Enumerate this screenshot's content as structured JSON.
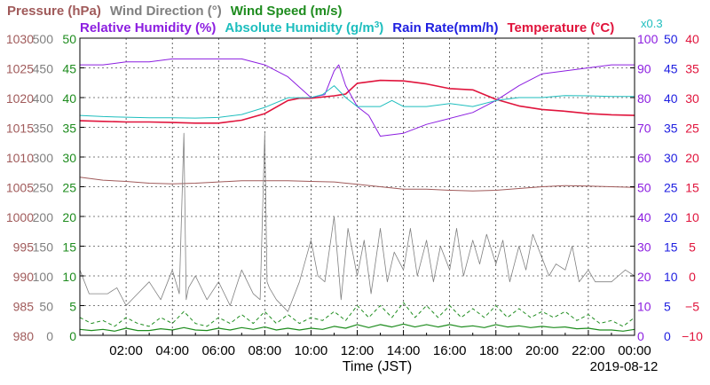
{
  "chart_data": {
    "type": "line",
    "date": "2019-08-12",
    "xlabel": "Time (JST)",
    "x_ticks": [
      "02:00",
      "04:00",
      "06:00",
      "08:00",
      "10:00",
      "12:00",
      "14:00",
      "16:00",
      "18:00",
      "20:00",
      "22:00",
      "00:00"
    ],
    "x_range_hours": [
      0,
      24
    ],
    "grid": true,
    "legend_placement": "top",
    "legend": [
      {
        "key": "pressure",
        "label": "Pressure (hPa)",
        "color": "#a05a5a",
        "row": 1
      },
      {
        "key": "wind_direction",
        "label": "Wind Direction (°)",
        "color": "#808080",
        "row": 1
      },
      {
        "key": "wind_speed",
        "label": "Wind Speed (m/s)",
        "color": "#1e8c1e",
        "row": 1
      },
      {
        "key": "relative_humidity",
        "label": "Relative Humidity (%)",
        "color": "#8c1ee0",
        "row": 2
      },
      {
        "key": "absolute_humidity",
        "label": "Absolute Humidity (g/m",
        "sup": "3",
        "tail": ")",
        "color": "#1ebebe",
        "row": 2
      },
      {
        "key": "rain_rate",
        "label": "Rain Rate(mm/h)",
        "color": "#1e1ee0",
        "row": 2
      },
      {
        "key": "temperature",
        "label": "Temperature  (°C)",
        "color": "#e0143c",
        "row": 2
      }
    ],
    "abs_humidity_factor_label": "x0.3",
    "axes": [
      {
        "key": "pressure",
        "side": "left",
        "color": "#a05a5a",
        "min": 980,
        "max": 1030,
        "ticks": [
          "980",
          "985",
          "990",
          "995",
          "1000",
          "1005",
          "1010",
          "1015",
          "1020",
          "1025",
          "1030"
        ]
      },
      {
        "key": "wind_direction",
        "side": "left",
        "color": "#808080",
        "min": 0,
        "max": 500,
        "ticks": [
          "0",
          "50",
          "100",
          "150",
          "200",
          "250",
          "300",
          "350",
          "400",
          "450",
          "500"
        ]
      },
      {
        "key": "wind_speed",
        "side": "left",
        "color": "#1e8c1e",
        "min": 0,
        "max": 50,
        "ticks": [
          "0",
          "5",
          "10",
          "15",
          "20",
          "25",
          "30",
          "35",
          "40",
          "45",
          "50"
        ]
      },
      {
        "key": "relative_humidity",
        "side": "right",
        "color": "#8c1ee0",
        "min": 0,
        "max": 100,
        "ticks": [
          "0",
          "10",
          "20",
          "30",
          "40",
          "50",
          "60",
          "70",
          "80",
          "90",
          "100"
        ]
      },
      {
        "key": "rain_rate",
        "side": "right",
        "color": "#1e1ee0",
        "min": 0,
        "max": 50,
        "ticks": [
          "0",
          "5",
          "10",
          "15",
          "20",
          "25",
          "30",
          "35",
          "40",
          "45",
          "50"
        ]
      },
      {
        "key": "temperature",
        "side": "right",
        "color": "#e0143c",
        "min": -10,
        "max": 40,
        "ticks": [
          "−10",
          "−5",
          "0",
          "5",
          "10",
          "15",
          "20",
          "25",
          "30",
          "35",
          "40"
        ]
      }
    ],
    "series": [
      {
        "name": "Pressure (hPa)",
        "key": "pressure",
        "color": "#a05a5a",
        "axis": "pressure",
        "width": 1,
        "x": [
          0,
          1,
          2,
          3,
          4,
          5,
          6,
          7,
          8,
          9,
          10,
          11,
          12,
          13,
          14,
          15,
          16,
          17,
          18,
          19,
          20,
          21,
          22,
          23,
          24
        ],
        "y": [
          1006.6,
          1006.1,
          1005.9,
          1005.6,
          1005.5,
          1005.6,
          1005.8,
          1006.0,
          1006.0,
          1006.0,
          1005.9,
          1005.8,
          1005.4,
          1005.0,
          1004.6,
          1004.6,
          1004.4,
          1004.3,
          1004.4,
          1004.7,
          1005.0,
          1005.2,
          1005.1,
          1005.0,
          1004.9
        ]
      },
      {
        "name": "Temperature  (°C)",
        "key": "temperature",
        "color": "#e0143c",
        "axis": "temperature",
        "width": 1.6,
        "x": [
          0,
          1,
          2,
          3,
          4,
          5,
          6,
          7,
          8,
          9,
          9.5,
          10,
          11,
          11.5,
          12,
          13,
          14,
          15,
          16,
          17,
          18,
          19,
          20,
          21,
          22,
          23,
          24
        ],
        "y": [
          26.1,
          26.0,
          25.9,
          25.9,
          25.8,
          25.7,
          25.7,
          26.2,
          27.3,
          29.5,
          29.9,
          29.9,
          30.3,
          30.6,
          32.4,
          32.9,
          32.8,
          32.3,
          31.5,
          31.3,
          29.7,
          28.6,
          28.0,
          27.7,
          27.3,
          27.1,
          27.0
        ]
      },
      {
        "name": "Relative Humidity (%)",
        "key": "relative_humidity",
        "color": "#8c1ee0",
        "axis": "relative_humidity",
        "width": 1,
        "x": [
          0,
          1,
          2,
          3,
          4,
          5,
          6,
          7,
          8,
          9,
          10,
          10.6,
          11,
          11.2,
          11.5,
          12,
          12.5,
          13,
          14,
          15,
          16,
          17,
          18,
          19,
          20,
          21,
          22,
          23,
          24
        ],
        "y": [
          91,
          91,
          92,
          92,
          93,
          93,
          93,
          93,
          91,
          87,
          80,
          81,
          89,
          91,
          84,
          77,
          74,
          67,
          68,
          71,
          73,
          75,
          79,
          84,
          88,
          89,
          90,
          91,
          91
        ]
      },
      {
        "name": "Absolute Humidity (g/m3)",
        "key": "absolute_humidity",
        "color": "#1ebebe",
        "axis": "relative_humidity",
        "width": 1,
        "x": [
          0,
          1,
          2,
          3,
          4,
          5,
          6,
          7,
          8,
          9,
          10,
          10.5,
          11,
          11.5,
          12,
          13,
          13.5,
          14,
          15,
          16,
          17,
          18,
          19,
          20,
          21,
          22,
          23,
          24
        ],
        "y": [
          74,
          73.6,
          73.4,
          73.2,
          73.2,
          73.1,
          73.3,
          74.3,
          76.7,
          79.9,
          80,
          81,
          84,
          80,
          77,
          77,
          79,
          77,
          77,
          78,
          77,
          79,
          80,
          80,
          80.7,
          80.6,
          80.4,
          80.4
        ]
      },
      {
        "name": "Wind Direction (°)",
        "key": "wind_direction",
        "color": "#808080",
        "axis": "wind_direction",
        "width": 0.8,
        "x": [
          0,
          0.4,
          0.8,
          1.2,
          1.6,
          2,
          2.5,
          3,
          3.5,
          4,
          4.3,
          4.5,
          4.6,
          4.7,
          5,
          5.5,
          6,
          6.5,
          7,
          7.5,
          7.8,
          8,
          8.1,
          8.2,
          8.5,
          9,
          9.5,
          10,
          10.3,
          10.6,
          11,
          11.3,
          11.6,
          12,
          12.3,
          12.6,
          13,
          13.3,
          13.6,
          14,
          14.3,
          14.6,
          15,
          15.3,
          15.6,
          16,
          16.3,
          16.6,
          17,
          17.3,
          17.6,
          18,
          18.3,
          18.6,
          19,
          19.3,
          19.6,
          20,
          20.3,
          20.6,
          21,
          21.3,
          21.6,
          22,
          22.3,
          22.6,
          23,
          23.3,
          23.6,
          24
        ],
        "y": [
          110,
          70,
          70,
          70,
          80,
          50,
          70,
          90,
          60,
          110,
          70,
          340,
          60,
          80,
          100,
          60,
          90,
          50,
          110,
          70,
          60,
          340,
          90,
          80,
          60,
          40,
          90,
          160,
          100,
          90,
          200,
          60,
          180,
          100,
          160,
          70,
          180,
          90,
          140,
          110,
          180,
          100,
          160,
          90,
          150,
          110,
          180,
          100,
          160,
          120,
          170,
          120,
          160,
          90,
          150,
          110,
          170,
          130,
          100,
          120,
          110,
          150,
          90,
          110,
          90,
          90,
          90,
          100,
          110,
          100
        ]
      },
      {
        "name": "Wind Speed (m/s) gust",
        "key": "wind_speed_gust",
        "color": "#1e8c1e",
        "axis": "wind_speed",
        "dashed": true,
        "width": 1,
        "x": [
          0,
          0.5,
          1,
          1.5,
          2,
          2.5,
          3,
          3.5,
          4,
          4.5,
          5,
          5.5,
          6,
          6.5,
          7,
          7.5,
          8,
          8.5,
          9,
          9.5,
          10,
          10.5,
          11,
          11.5,
          12,
          12.5,
          13,
          13.5,
          14,
          14.5,
          15,
          15.5,
          16,
          16.5,
          17,
          17.5,
          18,
          18.5,
          19,
          19.5,
          20,
          20.5,
          21,
          21.5,
          22,
          22.5,
          23,
          23.5,
          24
        ],
        "y": [
          3,
          2,
          2.5,
          1.5,
          3,
          2,
          1.5,
          3,
          2,
          4,
          2,
          1.5,
          3,
          2,
          3.5,
          2,
          4,
          2,
          3.5,
          2,
          3,
          2.5,
          4,
          2.5,
          5,
          3,
          5,
          3,
          5.5,
          3,
          5,
          3,
          5,
          3,
          4.5,
          3,
          5,
          3,
          4.5,
          3,
          4,
          3,
          4,
          2.5,
          3.5,
          2,
          2.5,
          1.5,
          3
        ]
      },
      {
        "name": "Wind Speed (m/s)",
        "key": "wind_speed",
        "color": "#1e8c1e",
        "axis": "wind_speed",
        "width": 1.2,
        "x": [
          0,
          0.5,
          1,
          1.5,
          2,
          2.5,
          3,
          3.5,
          4,
          4.5,
          5,
          5.5,
          6,
          6.5,
          7,
          7.5,
          8,
          8.5,
          9,
          9.5,
          10,
          10.5,
          11,
          11.5,
          12,
          12.5,
          13,
          13.5,
          14,
          14.5,
          15,
          15.5,
          16,
          16.5,
          17,
          17.5,
          18,
          18.5,
          19,
          19.5,
          20,
          20.5,
          21,
          21.5,
          22,
          22.5,
          23,
          23.5,
          24
        ],
        "y": [
          1,
          0.8,
          1,
          0.7,
          1.2,
          0.8,
          0.8,
          1.1,
          0.9,
          1.3,
          0.9,
          0.8,
          1.2,
          0.9,
          1.3,
          1,
          1.4,
          0.9,
          1.2,
          0.9,
          1.2,
          1,
          1.5,
          1.2,
          1.8,
          1.3,
          1.8,
          1.4,
          1.9,
          1.4,
          1.8,
          1.4,
          1.8,
          1.4,
          1.6,
          1.3,
          1.8,
          1.4,
          1.6,
          1.3,
          1.5,
          1.3,
          1.4,
          1.1,
          1.2,
          0.9,
          0.9,
          0.7,
          1
        ]
      },
      {
        "name": "Rain Rate(mm/h)",
        "key": "rain_rate",
        "color": "#1e1ee0",
        "axis": "rain_rate",
        "width": 1,
        "x": [
          0,
          24
        ],
        "y": [
          0,
          0
        ]
      }
    ]
  }
}
